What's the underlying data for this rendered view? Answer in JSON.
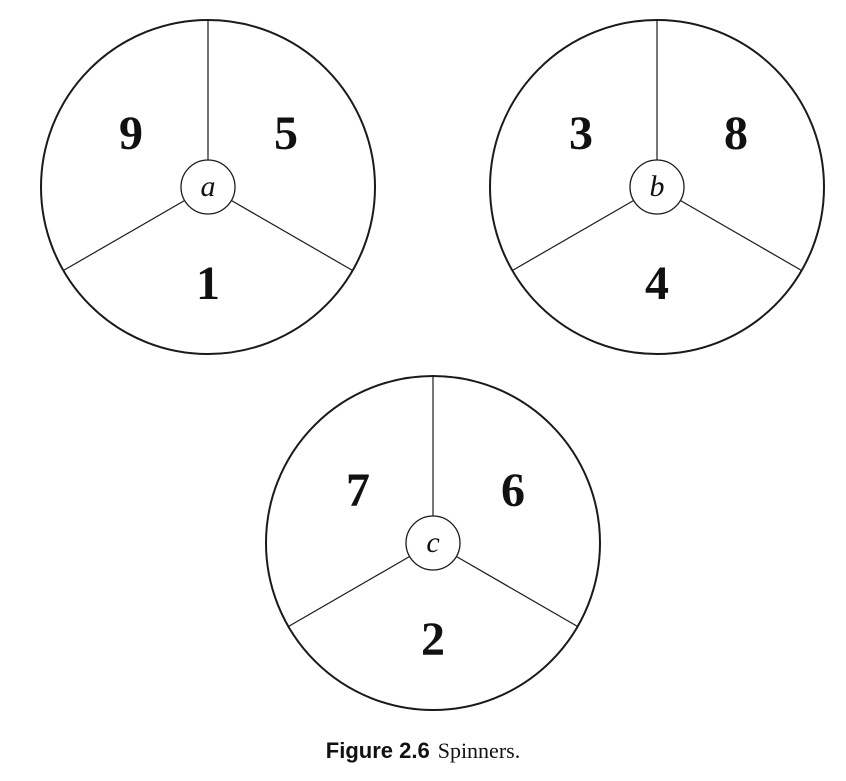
{
  "spinners": [
    {
      "label": "a",
      "top_left": "9",
      "top_right": "5",
      "bottom": "1"
    },
    {
      "label": "b",
      "top_left": "3",
      "top_right": "8",
      "bottom": "4"
    },
    {
      "label": "c",
      "top_left": "7",
      "top_right": "6",
      "bottom": "2"
    }
  ],
  "caption": {
    "label": "Figure 2.6",
    "text": "Spinners."
  }
}
